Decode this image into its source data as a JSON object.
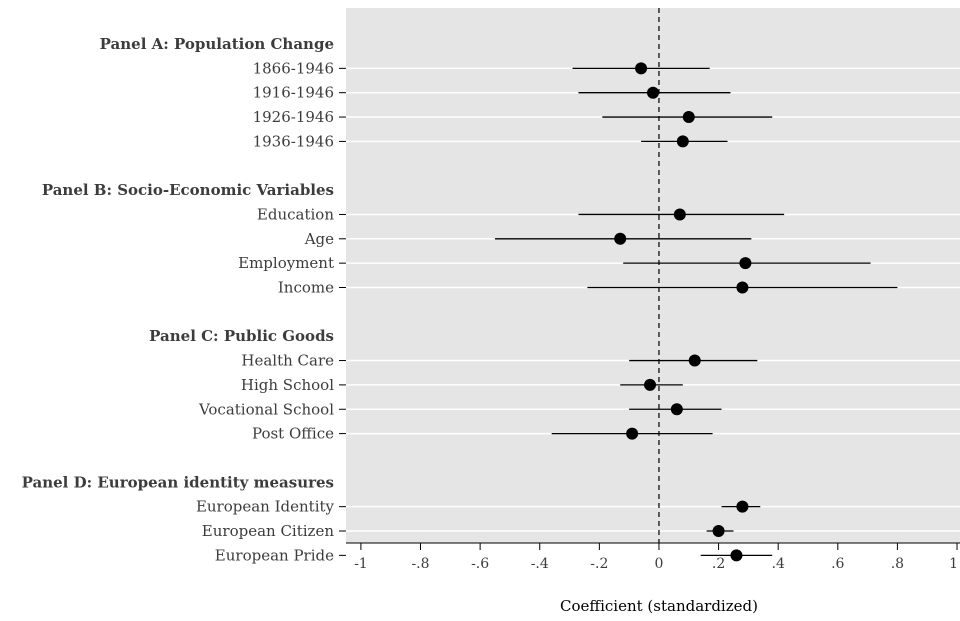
{
  "chart_data": {
    "type": "scatter",
    "subtype": "coefficient-plot-with-confidence-intervals",
    "title": "",
    "xlabel": "Coefficient (standardized)",
    "ylabel": "",
    "xlim": [
      -1.05,
      1.01
    ],
    "x_ticks": [
      -1,
      -0.8,
      -0.6,
      -0.4,
      -0.2,
      0,
      0.2,
      0.4,
      0.6,
      0.8,
      1
    ],
    "x_tick_labels": [
      "-1",
      "-.8",
      "-.6",
      "-.4",
      "-.2",
      "0",
      ".2",
      ".4",
      ".6",
      ".8",
      "1"
    ],
    "reference_line": 0,
    "grid": true,
    "background": "#e5e5e5",
    "marker_color": "#000000",
    "rows": [
      {
        "label": "Panel A: Population Change",
        "header": true
      },
      {
        "label": "1866-1946",
        "estimate": -0.06,
        "ci_low": -0.29,
        "ci_high": 0.17
      },
      {
        "label": "1916-1946",
        "estimate": -0.02,
        "ci_low": -0.27,
        "ci_high": 0.24
      },
      {
        "label": "1926-1946",
        "estimate": 0.1,
        "ci_low": -0.19,
        "ci_high": 0.38
      },
      {
        "label": "1936-1946",
        "estimate": 0.08,
        "ci_low": -0.06,
        "ci_high": 0.23
      },
      {
        "label": "",
        "spacer": true
      },
      {
        "label": "Panel B: Socio-Economic Variables",
        "header": true
      },
      {
        "label": "Education",
        "estimate": 0.07,
        "ci_low": -0.27,
        "ci_high": 0.42
      },
      {
        "label": "Age",
        "estimate": -0.13,
        "ci_low": -0.55,
        "ci_high": 0.31
      },
      {
        "label": "Employment",
        "estimate": 0.29,
        "ci_low": -0.12,
        "ci_high": 0.71
      },
      {
        "label": "Income",
        "estimate": 0.28,
        "ci_low": -0.24,
        "ci_high": 0.8
      },
      {
        "label": "",
        "spacer": true
      },
      {
        "label": "Panel C: Public Goods",
        "header": true
      },
      {
        "label": "Health Care",
        "estimate": 0.12,
        "ci_low": -0.1,
        "ci_high": 0.33
      },
      {
        "label": "High School",
        "estimate": -0.03,
        "ci_low": -0.13,
        "ci_high": 0.08
      },
      {
        "label": "Vocational School",
        "estimate": 0.06,
        "ci_low": -0.1,
        "ci_high": 0.21
      },
      {
        "label": "Post Office",
        "estimate": -0.09,
        "ci_low": -0.36,
        "ci_high": 0.18
      },
      {
        "label": "",
        "spacer": true
      },
      {
        "label": "Panel D: European identity measures",
        "header": true
      },
      {
        "label": "European Identity",
        "estimate": 0.28,
        "ci_low": 0.21,
        "ci_high": 0.34
      },
      {
        "label": "European Citizen",
        "estimate": 0.2,
        "ci_low": 0.16,
        "ci_high": 0.25
      },
      {
        "label": "European Pride",
        "estimate": 0.26,
        "ci_low": 0.14,
        "ci_high": 0.38
      }
    ]
  }
}
